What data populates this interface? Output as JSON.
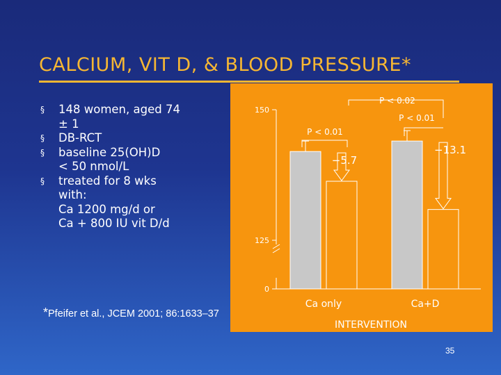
{
  "slide": {
    "title": "CALCIUM, VIT D, & BLOOD PRESSURE*",
    "bullet_marker": "§",
    "bullets": [
      [
        "148 women, aged 74",
        "± 1"
      ],
      [
        "DB-RCT"
      ],
      [
        "baseline 25(OH)D",
        "< 50 nmol/L"
      ],
      [
        "treated for 8 wks",
        "with:",
        "Ca 1200 mg/d or",
        "Ca + 800 IU vit D/d"
      ]
    ],
    "footnote_star": "*",
    "footnote": "Pfeifer et al., JCEM 2001; 86:1633–37",
    "page_number": "35",
    "colors": {
      "background_top": "#1a2a7a",
      "background_bottom": "#2f66c8",
      "title": "#f7b733",
      "chart_panel": "#f7950e",
      "bar_baseline": "#c8c8c8",
      "bar_treated": "#f7950e",
      "text": "#ffffff"
    }
  },
  "chart_data": {
    "type": "bar",
    "title": "",
    "xlabel": "INTERVENTION",
    "ylabel": "",
    "y_ticks": [
      "150",
      "125",
      "0"
    ],
    "ylim": [
      0,
      150
    ],
    "axis_break": true,
    "categories": [
      "Ca only",
      "Ca+D"
    ],
    "series": [
      {
        "role": "baseline",
        "color": "#c8c8c8",
        "values": [
          142,
          144
        ]
      },
      {
        "role": "after 8 wks",
        "color": "#f7950e",
        "values": [
          136.3,
          130.9
        ]
      }
    ],
    "error_bars": [
      2,
      2
    ],
    "change_labels": [
      "−5.7",
      "−13.1"
    ],
    "annotations": [
      "P < 0.02",
      "P < 0.01",
      "P < 0.01"
    ]
  }
}
